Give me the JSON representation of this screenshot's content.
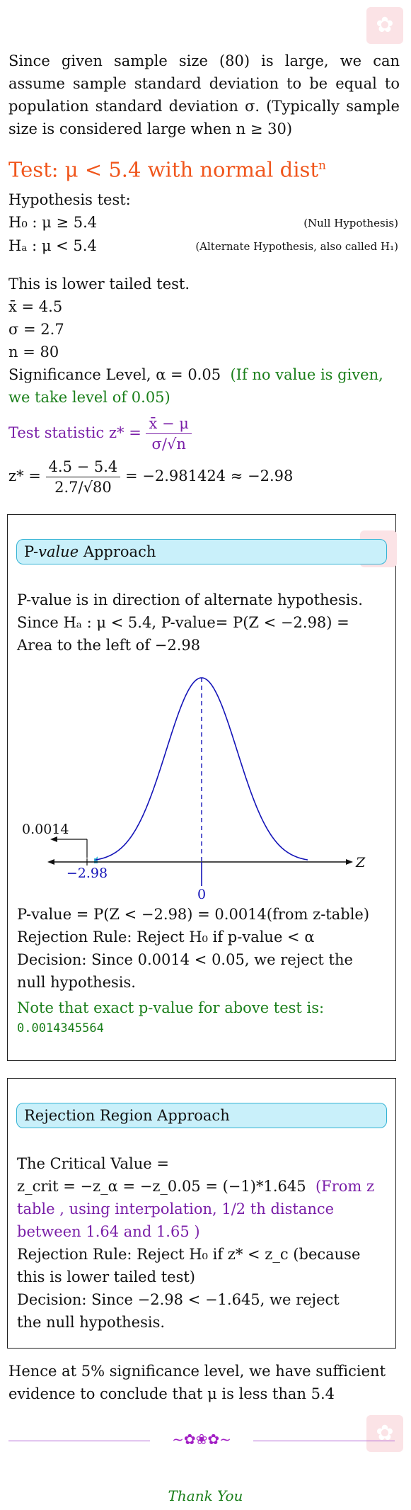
{
  "intro": "Since given sample size (80) is large, we can assume sample standard deviation to be equal to population standard deviation σ. (Typically sample size is considered large when n ≥ 30)",
  "heading": {
    "text": "Test: μ < 5.4 with normal dist",
    "sup": "n"
  },
  "hypothesis": {
    "label": "Hypothesis test:",
    "h0": "H₀ : μ ≥ 5.4",
    "h0_note": "(Null Hypothesis)",
    "ha": "Hₐ : μ < 5.4",
    "ha_note": "(Alternate Hypothesis, also called H₁)"
  },
  "tail": "This is lower tailed test.",
  "values": {
    "xbar": "x̄ = 4.5",
    "sigma": "σ = 2.7",
    "n": "n = 80",
    "alpha": "Significance Level, α = 0.05",
    "alpha_note": "(If no value is given, we take level of 0.05)"
  },
  "stat": {
    "label": "Test statistic z* =",
    "num": "x̄ − μ",
    "den": "σ/√n",
    "lhs": "z* =",
    "calc_num": "4.5 − 5.4",
    "calc_den": "2.7/√80",
    "result": "= −2.981424 ≈ −2.98"
  },
  "pvalue": {
    "title_a": "P-",
    "title_b": "value",
    "title_c": " Approach",
    "line1": "P-value is in direction of alternate hypothesis.",
    "line2": "Since Hₐ : μ < 5.4, P-value= P(Z < −2.98) = Area to the left of −2.98",
    "graph": {
      "left_value": "0.0014",
      "crit_label": "−2.98",
      "zero_label": "0",
      "axis_label": "Z"
    },
    "result": "P-value = P(Z < −2.98) = 0.0014(from z-table)",
    "rule": "Rejection Rule: Reject H₀ if p-value < α",
    "decision": "Decision: Since 0.0014 < 0.05, we reject the null hypothesis.",
    "note": "Note that exact p-value for above test is:",
    "exact": "0.0014345564"
  },
  "rejection": {
    "title": "Rejection Region Approach",
    "cv_label": "The Critical Value =",
    "zcrit": "z_crit = −z_α = −z_0.05 = (−1)*1.645",
    "zcrit_note": "(From z table , using interpolation, 1/2 th distance between 1.64 and 1.65 )",
    "rule": "Rejection Rule: Reject H₀ if z* < z_c (because this is lower tailed test)",
    "decision": "Decision: Since −2.98 < −1.645, we reject the null hypothesis."
  },
  "conclusion": "Hence at 5% significance level, we have sufficient evidence to conclude that μ is less than 5.4",
  "footer": {
    "ornament": "~✿❀✿~",
    "thanks": "Thank You"
  },
  "colors": {
    "orange": "#f0561c",
    "green": "#1a7f1a",
    "purple": "#7a1fa8",
    "blue": "#1414b8",
    "tag_bg": "#c9f0fa"
  }
}
